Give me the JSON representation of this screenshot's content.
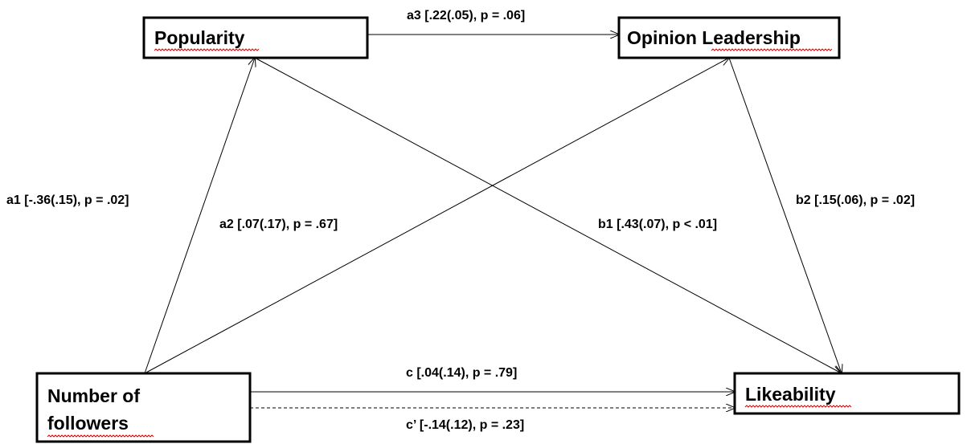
{
  "nodes": {
    "popularity": "Popularity",
    "opinion_leadership": "Opinion Leadership",
    "followers_line1": "Number of",
    "followers_line2": "followers",
    "likeability": "Likeability"
  },
  "paths": {
    "a1": "a1 [-.36(.15), p = .02]",
    "a2": "a2 [.07(.17), p = .67]",
    "a3": "a3 [.22(.05), p = .06]",
    "b1": "b1 [.43(.07), p < .01]",
    "b2": "b2 [.15(.06), p = .02]",
    "c": "c [.04(.14), p = .79]",
    "c_prime": "c’ [-.14(.12), p = .23]"
  },
  "colors": {
    "stroke": "#000000",
    "spellcheck_underline": "#e00000"
  }
}
